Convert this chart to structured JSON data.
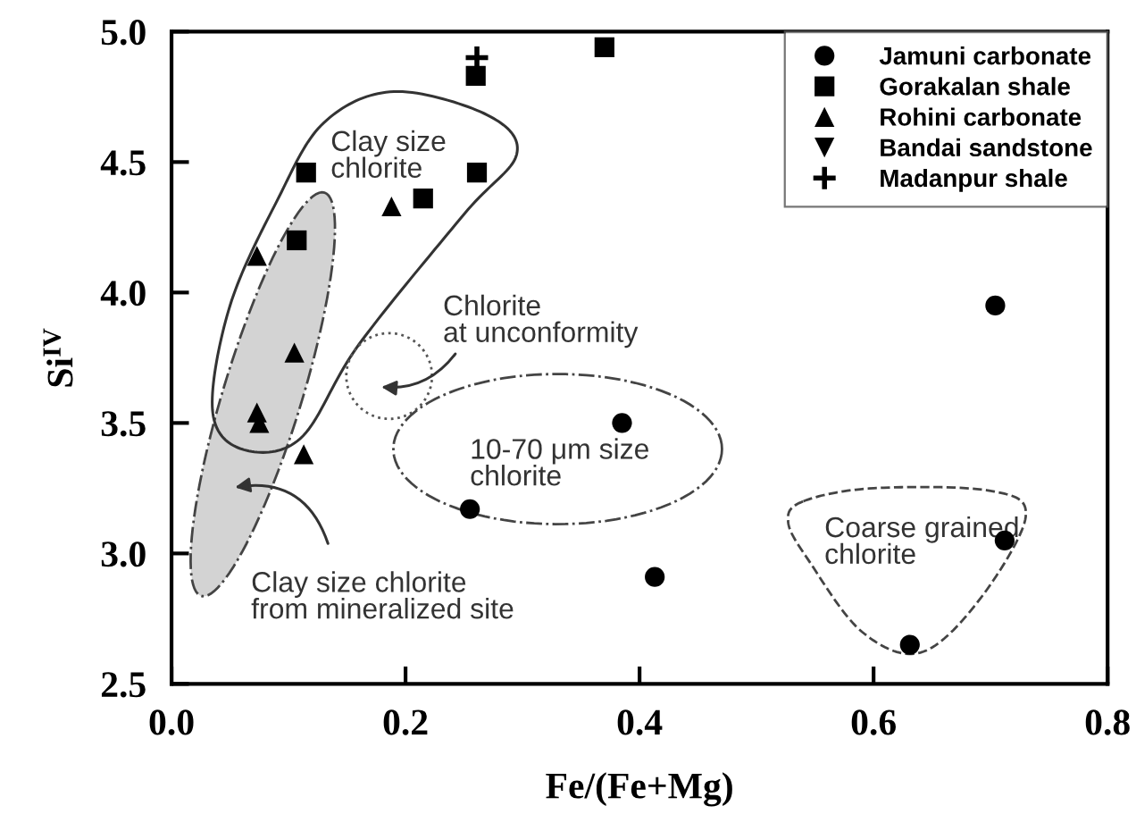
{
  "chart_data": {
    "type": "scatter",
    "xlabel": "Fe/(Fe+Mg)",
    "ylabel": "Si$^{IV}$",
    "xlim": [
      0.0,
      0.8
    ],
    "xticks": [
      {
        "value": 0.0,
        "label": "0.0"
      },
      0.2,
      0.4,
      0.6,
      {
        "value": 0.8,
        "label": "0.8"
      }
    ],
    "ylim": [
      2.5,
      5.0
    ],
    "yticks": [
      2.5,
      {
        "value": 3.0,
        "label": "3.0"
      },
      3.5,
      {
        "value": 4.0,
        "label": "4.0"
      },
      4.5,
      {
        "value": 5.0,
        "label": "5.0"
      }
    ],
    "grid": false,
    "legend": "top right",
    "series": [
      {
        "name": "Jamuni carbonate",
        "color": "#000000",
        "marker": "circle",
        "x": [
          0.704,
          0.385,
          0.255,
          0.413,
          0.712,
          0.631
        ],
        "values": [
          3.95,
          3.5,
          3.17,
          2.91,
          3.05,
          2.65
        ]
      },
      {
        "name": "Gorakalan shale",
        "color": "#000000",
        "marker": "square",
        "x": [
          0.37,
          0.26,
          0.261,
          0.115,
          0.215,
          0.107
        ],
        "values": [
          4.94,
          4.83,
          4.46,
          4.46,
          4.36,
          4.2
        ]
      },
      {
        "name": "Rohini carbonate",
        "color": "#000000",
        "marker": "triangle",
        "x": [
          0.188,
          0.073,
          0.105,
          0.073,
          0.075,
          0.113
        ],
        "values": [
          4.33,
          4.14,
          3.77,
          3.54,
          3.5,
          3.38
        ]
      },
      {
        "name": "Bandai sandstone",
        "color": "#000000",
        "marker": "triangle_down"
      },
      {
        "name": "Madanpur shale",
        "color": "#000000",
        "marker": "cross",
        "x": [
          0.261
        ],
        "values": [
          4.9
        ]
      }
    ],
    "annotations": [
      "Clay size\nchlorite",
      "Chlorite\nat unconformity",
      "10-70 μm size\nchlorite",
      "Coarse grained\nchlorite",
      "Clay size chlorite\nfrom mineralized site"
    ]
  }
}
